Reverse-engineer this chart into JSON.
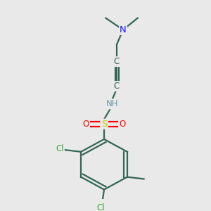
{
  "background_color": "#e9e9e9",
  "colors": {
    "N": "#1a1aff",
    "S": "#cccc00",
    "O": "#ff0000",
    "Cl": "#33aa33",
    "C": "#336655",
    "H": "#6699aa",
    "bond": "#336655"
  },
  "figsize": [
    3.0,
    3.0
  ],
  "dpi": 100
}
